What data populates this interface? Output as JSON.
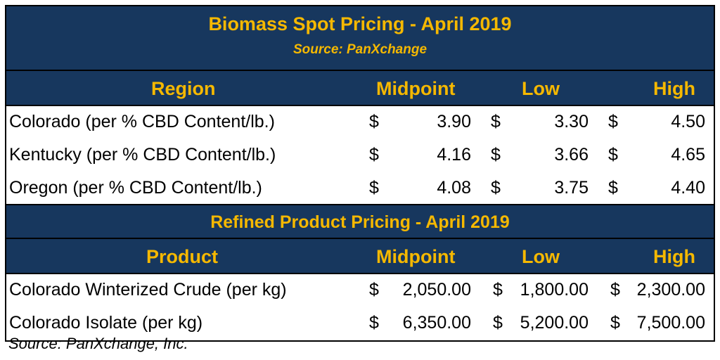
{
  "biomass": {
    "title": "Biomass Spot Pricing - April 2019",
    "subtitle": "Source: PanXchange",
    "headers": {
      "region": "Region",
      "midpoint": "Midpoint",
      "low": "Low",
      "high": "High"
    },
    "rows": [
      {
        "label": "Colorado (per % CBD Content/lb.)",
        "mid_sym": "$",
        "mid": "3.90",
        "low_sym": "$",
        "low": "3.30",
        "high_sym": "$",
        "high": "4.50"
      },
      {
        "label": "Kentucky (per % CBD Content/lb.)",
        "mid_sym": "$",
        "mid": "4.16",
        "low_sym": "$",
        "low": "3.66",
        "high_sym": "$",
        "high": "4.65"
      },
      {
        "label": "Oregon (per % CBD Content/lb.)",
        "mid_sym": "$",
        "mid": "4.08",
        "low_sym": "$",
        "low": "3.75",
        "high_sym": "$",
        "high": "4.40"
      }
    ]
  },
  "refined": {
    "title": "Refined Product Pricing - April 2019",
    "headers": {
      "product": "Product",
      "midpoint": "Midpoint",
      "low": "Low",
      "high": "High"
    },
    "rows": [
      {
        "label": "Colorado Winterized Crude (per kg)",
        "mid_sym": "$",
        "mid": "2,050.00",
        "low_sym": "$",
        "low": "1,800.00",
        "high_sym": "$",
        "high": "2,300.00"
      },
      {
        "label": "Colorado Isolate (per kg)",
        "mid_sym": "$",
        "mid": "6,350.00",
        "low_sym": "$",
        "low": "5,200.00",
        "high_sym": "$",
        "high": "7,500.00"
      }
    ]
  },
  "footer": "Source: PanXchange, Inc.",
  "colors": {
    "header_bg": "#17375e",
    "header_text": "#f5b800"
  }
}
